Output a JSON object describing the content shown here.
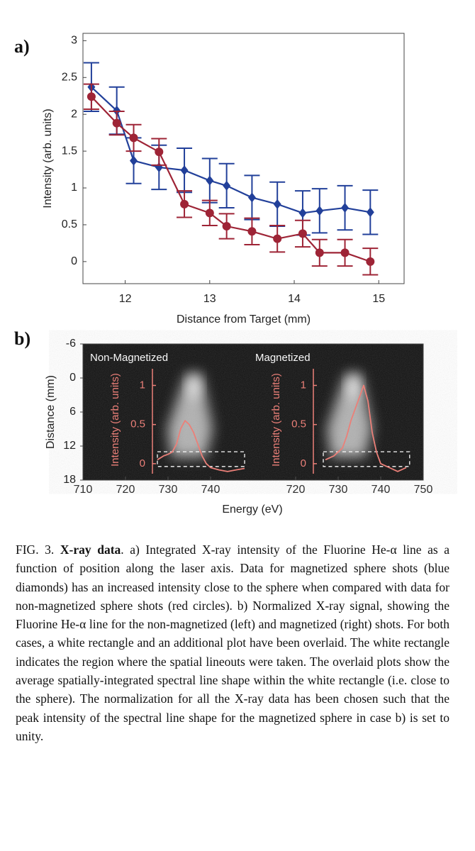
{
  "chart_data": [
    {
      "type": "line",
      "label": "a)",
      "xlabel": "Distance from Target (mm)",
      "ylabel": "Intensity (arb. units)",
      "x": [
        11.6,
        11.9,
        12.1,
        12.4,
        12.7,
        13.0,
        13.2,
        13.5,
        13.8,
        14.1,
        14.3,
        14.6,
        14.9
      ],
      "xlim": [
        11.5,
        15.3
      ],
      "xticks": [
        12,
        13,
        14,
        15
      ],
      "ylim": [
        -0.3,
        3.1
      ],
      "yticks": [
        0,
        0.5,
        1,
        1.5,
        2,
        2.5,
        3
      ],
      "series": [
        {
          "color": "#22409a",
          "marker": "diamond",
          "values": [
            2.37,
            2.05,
            1.37,
            1.28,
            1.24,
            1.1,
            1.03,
            0.87,
            0.78,
            0.66,
            0.69,
            0.73,
            0.67
          ],
          "errors": [
            0.33,
            0.32,
            0.31,
            0.3,
            0.3,
            0.3,
            0.3,
            0.3,
            0.3,
            0.3,
            0.3,
            0.3,
            0.3
          ]
        },
        {
          "color": "#9e2436",
          "marker": "circle",
          "values": [
            2.24,
            1.88,
            1.68,
            1.49,
            0.78,
            0.66,
            0.48,
            0.41,
            0.31,
            0.38,
            0.12,
            0.12,
            0.0
          ],
          "errors": [
            0.17,
            0.16,
            0.18,
            0.18,
            0.18,
            0.17,
            0.17,
            0.18,
            0.18,
            0.18,
            0.18,
            0.18,
            0.18
          ]
        }
      ]
    },
    {
      "type": "image",
      "label": "b)",
      "xlabel": "Energy (eV)",
      "ylabel": "Distance (mm)",
      "ylim": [
        -6,
        18
      ],
      "yticks": [
        -6,
        0,
        6,
        12,
        18
      ],
      "y_inverted": true,
      "inset": {
        "ylabel": "Intensity (arb. units)",
        "ylim": [
          -0.21,
          1.53
        ],
        "yticks": [
          0,
          0.5,
          1
        ],
        "color": "#f07a72"
      },
      "panels": [
        {
          "name": "Non-Magnetized",
          "xlim": [
            710,
            750
          ],
          "xticks": [
            710,
            720,
            730,
            740
          ],
          "box": {
            "x": [
              727.5,
              748
            ],
            "y": [
              13,
              15.6
            ]
          },
          "spectrum": {
            "x": [
              727.5,
              729,
              730,
              731,
              732,
              733,
              734,
              735,
              736,
              737,
              738,
              739,
              740,
              742,
              744,
              746,
              748
            ],
            "values": [
              0.05,
              0.1,
              0.12,
              0.15,
              0.25,
              0.45,
              0.55,
              0.5,
              0.4,
              0.25,
              0.1,
              0.0,
              -0.05,
              -0.08,
              -0.1,
              -0.08,
              -0.06
            ]
          }
        },
        {
          "name": "Magnetized",
          "xlim": [
            710,
            750
          ],
          "xticks": [
            720,
            730,
            740,
            750
          ],
          "box": {
            "x": [
              726.5,
              746.8
            ],
            "y": [
              13,
              15.6
            ]
          },
          "spectrum": {
            "x": [
              727,
              729,
              731,
              732,
              733,
              734,
              735,
              736,
              737,
              738,
              739,
              740,
              742,
              744,
              746
            ],
            "values": [
              0.05,
              0.1,
              0.2,
              0.35,
              0.55,
              0.7,
              0.85,
              1.0,
              0.8,
              0.4,
              0.15,
              0.0,
              -0.05,
              -0.1,
              -0.05
            ]
          }
        }
      ]
    }
  ],
  "caption": {
    "label": "FIG. 3.",
    "title": "X-ray data",
    "text": ". a) Integrated X-ray intensity of the Fluorine He-α line as a function of position along the laser axis. Data for magnetized sphere shots (blue diamonds) has an increased intensity close to the sphere when compared with data for non-magnetized sphere shots (red circles). b) Normalized X-ray signal, showing the Fluorine He-α line for the non-magnetized (left) and magnetized (right) shots. For both cases, a white rectangle and an additional plot have been overlaid. The white rectangle indicates the region where the spatial lineouts were taken. The overlaid plots show the average spatially-integrated spectral line shape within the white rectangle (i.e. close to the sphere). The normalization for all the X-ray data has been chosen such that the peak intensity of the spectral line shape for the magnetized sphere in case b) is set to unity."
  }
}
